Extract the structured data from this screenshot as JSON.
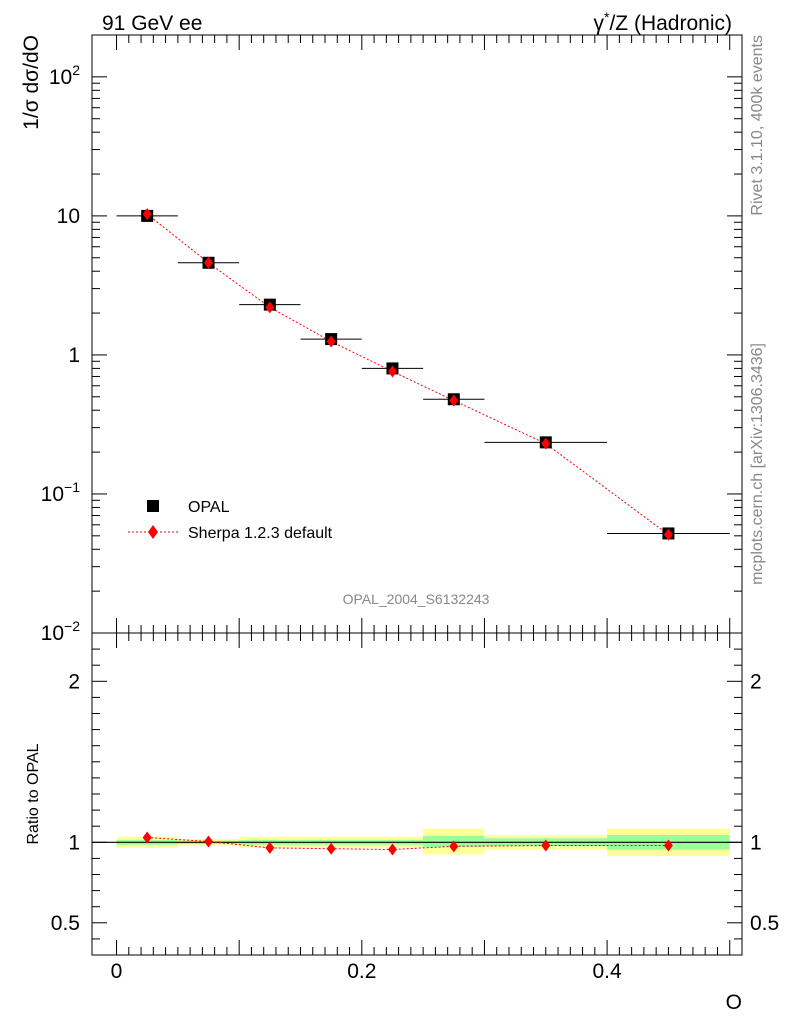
{
  "header": {
    "left_title": "91 GeV ee",
    "right_title_pre": "γ",
    "right_title_sup": "*",
    "right_title_post": "/Z (Hadronic)"
  },
  "side_text": {
    "rivet": "Rivet 3.1.10,  400k events",
    "mcplots": "mcplots.cern.ch [arXiv:1306.3436]"
  },
  "analysis_id": "OPAL_2004_S6132243",
  "colors": {
    "data": "#000000",
    "mc": "#ff0000",
    "band_outer": "#ffff99",
    "band_inner": "#99ff99"
  },
  "chart_data": [
    {
      "type": "scatter",
      "panel": "main",
      "ylabel": "1/σ dσ/dO",
      "yscale": "log",
      "ylim": [
        0.01,
        200
      ],
      "xlim": [
        -0.02,
        0.51
      ],
      "yticks": [
        {
          "value": 0.01,
          "base": "10",
          "exp": "−2"
        },
        {
          "value": 0.1,
          "base": "10",
          "exp": "−1"
        },
        {
          "value": 1,
          "base": "1",
          "exp": ""
        },
        {
          "value": 10,
          "base": "10",
          "exp": ""
        },
        {
          "value": 100,
          "base": "10",
          "exp": "2"
        }
      ],
      "legend": {
        "placement": "bottom-left",
        "entries": [
          "OPAL",
          "Sherpa 1.2.3 default"
        ]
      },
      "series": [
        {
          "name": "OPAL",
          "marker": "square",
          "x": [
            0.025,
            0.075,
            0.125,
            0.175,
            0.225,
            0.275,
            0.35,
            0.45
          ],
          "xerr": [
            0.025,
            0.025,
            0.025,
            0.025,
            0.025,
            0.025,
            0.05,
            0.05
          ],
          "y": [
            10.0,
            4.6,
            2.3,
            1.3,
            0.8,
            0.48,
            0.235,
            0.052
          ]
        },
        {
          "name": "Sherpa 1.2.3 default",
          "marker": "diamond",
          "line": "dotted",
          "x": [
            0.025,
            0.075,
            0.125,
            0.175,
            0.225,
            0.275,
            0.35,
            0.45
          ],
          "y": [
            10.3,
            4.6,
            2.2,
            1.25,
            0.76,
            0.47,
            0.23,
            0.051
          ]
        }
      ]
    },
    {
      "type": "scatter",
      "panel": "ratio",
      "xlabel": "O",
      "ylabel": "Ratio to OPAL",
      "ylim": [
        0.3,
        2.3
      ],
      "xlim": [
        -0.02,
        0.51
      ],
      "xticks": [
        {
          "value": 0,
          "label": "0"
        },
        {
          "value": 0.2,
          "label": "0.2"
        },
        {
          "value": 0.4,
          "label": "0.4"
        }
      ],
      "yticks": [
        {
          "value": 0.5,
          "label": "0.5"
        },
        {
          "value": 1,
          "label": "1"
        },
        {
          "value": 2,
          "label": "2"
        }
      ],
      "bands": [
        {
          "x0": 0.0,
          "x1": 0.05,
          "inner": [
            0.985,
            1.015
          ],
          "outer": [
            0.965,
            1.035
          ]
        },
        {
          "x0": 0.05,
          "x1": 0.1,
          "inner": [
            0.99,
            1.01
          ],
          "outer": [
            0.98,
            1.02
          ]
        },
        {
          "x0": 0.1,
          "x1": 0.15,
          "inner": [
            0.985,
            1.015
          ],
          "outer": [
            0.965,
            1.035
          ]
        },
        {
          "x0": 0.15,
          "x1": 0.25,
          "inner": [
            0.985,
            1.015
          ],
          "outer": [
            0.965,
            1.035
          ]
        },
        {
          "x0": 0.25,
          "x1": 0.3,
          "inner": [
            0.97,
            1.04
          ],
          "outer": [
            0.925,
            1.085
          ]
        },
        {
          "x0": 0.3,
          "x1": 0.4,
          "inner": [
            0.975,
            1.025
          ],
          "outer": [
            0.955,
            1.045
          ]
        },
        {
          "x0": 0.4,
          "x1": 0.5,
          "inner": [
            0.955,
            1.045
          ],
          "outer": [
            0.915,
            1.085
          ]
        }
      ],
      "series": [
        {
          "name": "Sherpa 1.2.3 default",
          "x": [
            0.025,
            0.075,
            0.125,
            0.175,
            0.225,
            0.275,
            0.35,
            0.45
          ],
          "y": [
            1.03,
            1.005,
            0.965,
            0.96,
            0.955,
            0.975,
            0.98,
            0.98
          ]
        }
      ]
    }
  ]
}
